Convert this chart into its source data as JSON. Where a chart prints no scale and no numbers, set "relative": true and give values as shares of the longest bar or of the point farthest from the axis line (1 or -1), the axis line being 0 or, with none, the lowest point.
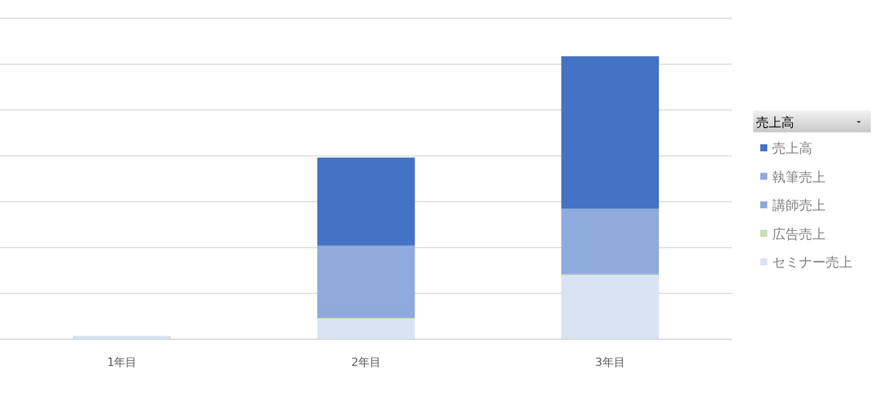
{
  "chart_data": {
    "type": "bar",
    "stacked": true,
    "relative": true,
    "grid": "y",
    "legend": "right",
    "legend_title": "売上高",
    "categories": [
      "1年目",
      "2年目",
      "3年目"
    ],
    "series": [
      {
        "name": "セミナー売上",
        "color": "#dae3f3",
        "values": [
          0.012,
          0.072,
          0.226
        ]
      },
      {
        "name": "広告売上",
        "color": "#c5e0b4",
        "values": [
          0,
          0.003,
          0.003
        ]
      },
      {
        "name": "講師売上",
        "color": "#8eaadb",
        "values": [
          0,
          0.032,
          0.003
        ]
      },
      {
        "name": "執筆売上",
        "color": "#8faadc",
        "values": [
          0,
          0.224,
          0.229
        ]
      },
      {
        "name": "売上高",
        "color": "#4472c4",
        "values": [
          0,
          0.311,
          0.539
        ]
      }
    ]
  }
}
